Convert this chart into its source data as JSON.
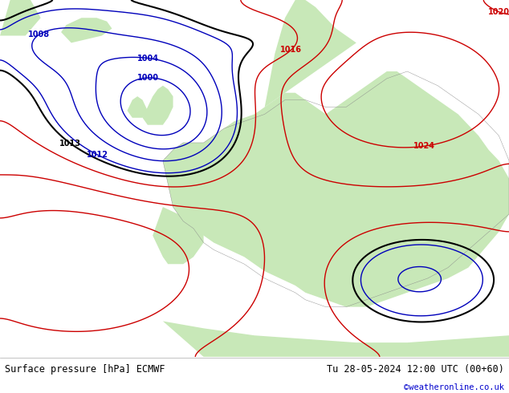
{
  "title_left": "Surface pressure [hPa] ECMWF",
  "title_right": "Tu 28-05-2024 12:00 UTC (00+60)",
  "watermark": "©weatheronline.co.uk",
  "bg_ocean": "#e8e8ee",
  "bg_land": "#c8e8b8",
  "bg_land2": "#a8d898",
  "figsize": [
    6.34,
    4.9
  ],
  "dpi": 100,
  "footer_bg": "#e8e8e8",
  "contour_low": "#0000bb",
  "contour_mid": "#000000",
  "contour_high": "#cc0000",
  "footer_text_color": "#000000",
  "watermark_color": "#0000cc"
}
